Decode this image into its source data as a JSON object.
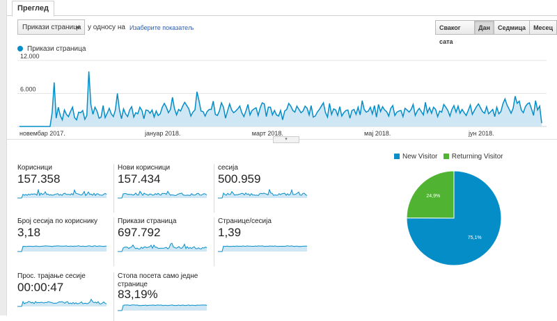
{
  "tabs": [
    {
      "label": "Преглед"
    }
  ],
  "controls": {
    "metric_selected": "Прикази страница",
    "vs_text": "у односу на",
    "choose_metric_link": "Изаберите показатељ",
    "periods": [
      "Сваког сата",
      "Дан",
      "Седмица",
      "Месец"
    ],
    "active_period": "Дан"
  },
  "chart_data": [
    {
      "type": "area",
      "series": [
        {
          "name": "Прикази страница",
          "values": [
            0,
            0,
            0,
            0,
            0,
            0,
            0,
            0,
            0,
            0,
            0,
            0,
            0,
            0,
            0,
            0,
            2500,
            8000,
            1500,
            3500,
            2000,
            1200,
            3000,
            2200,
            1800,
            2700,
            3500,
            1600,
            1200,
            2600,
            2500,
            2900,
            1300,
            2000,
            10000,
            4000,
            2200,
            3500,
            2800,
            1500,
            1700,
            3800,
            1600,
            2400,
            3300,
            2300,
            1800,
            3000,
            6000,
            3000,
            1400,
            3200,
            2300,
            1800,
            3000,
            3600,
            1700,
            2500,
            2300,
            3500,
            2900,
            1400,
            3000,
            2900,
            2400,
            3000,
            1700,
            2800,
            2000,
            2300,
            3500,
            4200,
            3500,
            2500,
            3100,
            5300,
            3200,
            2100,
            3100,
            2800,
            3700,
            4400,
            3800,
            3200,
            1900,
            2600,
            3000,
            6300,
            4700,
            2800,
            2700,
            1900,
            2700,
            3100,
            3100,
            4600,
            2200,
            2000,
            2800,
            4300,
            3500,
            1500,
            2800,
            4100,
            3000,
            2500,
            2800,
            3200,
            3700,
            2500,
            1800,
            2800,
            4000,
            2100,
            2900,
            3200,
            3400,
            2000,
            3400,
            4300,
            4100,
            1800,
            3500,
            3500,
            2100,
            2900,
            2100,
            1900,
            2900,
            1200,
            2800,
            3100,
            4200,
            3700,
            2900,
            2600,
            3700,
            3100,
            2500,
            2800,
            3700,
            3300,
            2100,
            3800,
            1700,
            1900,
            2600,
            3100,
            3700,
            4300,
            2500,
            1700,
            4200,
            2200,
            3200,
            3000,
            2000,
            3600,
            1900,
            2500,
            2900,
            3000,
            1500,
            2900,
            3100,
            2200,
            3500,
            2100,
            4700,
            3100,
            2600,
            2800,
            3500,
            2300,
            3800,
            1700,
            4000,
            2700,
            3600,
            3000,
            2700,
            1900,
            3300,
            3800,
            2000,
            2600,
            2800,
            2900,
            1800,
            3300,
            3000,
            2600,
            3100,
            4000,
            2000,
            2800,
            3300,
            2700,
            2100,
            4400,
            2500,
            3400,
            2400,
            3500,
            3100,
            1800,
            2800,
            2600,
            4000,
            3500,
            2900,
            1900,
            3100,
            3800,
            2600,
            3700,
            2400,
            3100,
            2500,
            2000,
            2900,
            3900,
            2200,
            2900,
            3600,
            4100,
            3400,
            2700,
            2400,
            3600,
            2300,
            2700,
            3100,
            1800,
            3500,
            2300,
            2700,
            4100,
            5000,
            3900,
            3200,
            2400,
            3300,
            5500,
            4200,
            4600,
            3000,
            2500,
            3600,
            4100,
            4300,
            3200,
            2000,
            4700,
            3000,
            3700,
            600
          ]
        }
      ],
      "ylim": [
        0,
        12000
      ],
      "yticks": [
        "12.000",
        "6.000"
      ],
      "xtick_labels": [
        "новембар 2017.",
        "јануар 2018.",
        "март 2018.",
        "мај 2018.",
        "јун 2018."
      ],
      "grid": true,
      "legend_position": "top-left"
    },
    {
      "type": "pie",
      "categories": [
        "New Visitor",
        "Returning Visitor"
      ],
      "values": [
        75.1,
        24.9
      ],
      "data_labels": [
        "75,1%",
        "24,9%"
      ],
      "colors": [
        "#058dc7",
        "#50b432"
      ],
      "legend_position": "top"
    }
  ],
  "metrics": [
    {
      "label": "Корисници",
      "value": "157.358"
    },
    {
      "label": "Нови корисници",
      "value": "157.434"
    },
    {
      "label": "сесија",
      "value": "500.959"
    },
    {
      "label": "Број сесија по кориснику",
      "value": "3,18"
    },
    {
      "label": "Прикази страница",
      "value": "697.792"
    },
    {
      "label": "Странице/сесија",
      "value": "1,39"
    },
    {
      "label": "Прос. трајање сесије",
      "value": "00:00:47"
    },
    {
      "label": "Стопа посета само једне странице",
      "value": "83,19%"
    }
  ],
  "colors": {
    "accent": "#058dc7",
    "fill": "#cfe7f4",
    "secondary": "#50b432",
    "link": "#2a5db0"
  }
}
